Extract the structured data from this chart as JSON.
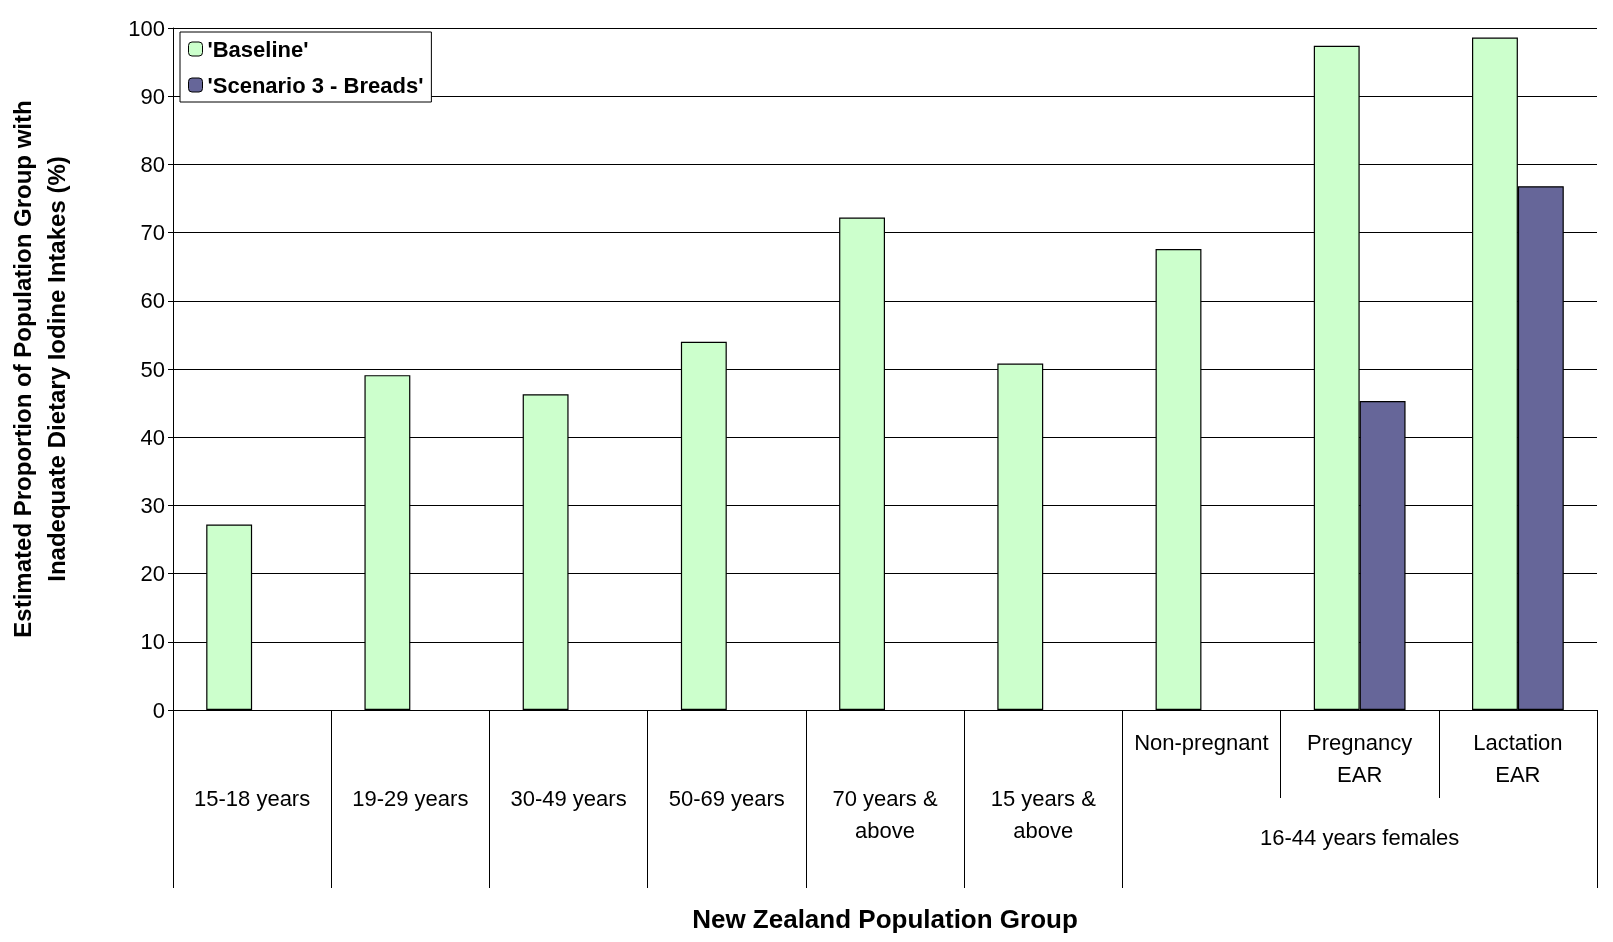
{
  "chart_data": {
    "type": "bar",
    "xlabel": "New Zealand Population Group",
    "ylabel": "Estimated Proportion of Population Group with Inadequate Dietary Iodine Intakes (%)",
    "categories": [
      "15-18 years",
      "19-29 years",
      "30-49 years",
      "50-69 years",
      "70 years & above",
      "15 years & above",
      "Non-pregnant",
      "Pregnancy EAR",
      "Lactation EAR"
    ],
    "series": [
      {
        "name": "'Baseline'",
        "color": "#ccffcc",
        "values": [
          27.2,
          49.1,
          46.3,
          54.0,
          72.2,
          50.8,
          67.6,
          97.4,
          98.6
        ]
      },
      {
        "name": "'Scenario 3 - Breads'",
        "color": "#666699",
        "values": [
          null,
          null,
          null,
          null,
          null,
          null,
          null,
          45.3,
          76.8
        ]
      }
    ],
    "annotations": [
      "16-44 years females"
    ],
    "ylim": [
      0,
      100
    ],
    "yticks": [
      0,
      10,
      20,
      30,
      40,
      50,
      60,
      70,
      80,
      90,
      100
    ],
    "grid": "y",
    "legend": "top left"
  }
}
